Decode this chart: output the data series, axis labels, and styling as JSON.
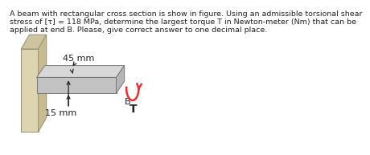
{
  "title_line1": "A beam with rectangular cross section is show in figure. Using an admissible torsional shear",
  "title_line2": "stress of [τ] = 118 MPa, determine the largest torque T in Newton-meter (Nm) that can be",
  "title_line3": "applied at end B. Please, give correct answer to one decimal place.",
  "label_45mm": "45 mm",
  "label_15mm": "15 mm",
  "label_B": "B",
  "label_T": "T",
  "bg_color": "#ffffff",
  "wall_face_color": "#ddd4b0",
  "wall_top_color": "#cfc3a0",
  "wall_right_color": "#c8bb90",
  "beam_top_color": "#d8d8d8",
  "beam_front_color": "#c2c2c2",
  "beam_right_color": "#b5b5b5",
  "beam_edge_color": "#777777",
  "torque_color": "#e83030",
  "text_color": "#222222",
  "title_fontsize": 6.8,
  "label_fontsize": 8.0
}
